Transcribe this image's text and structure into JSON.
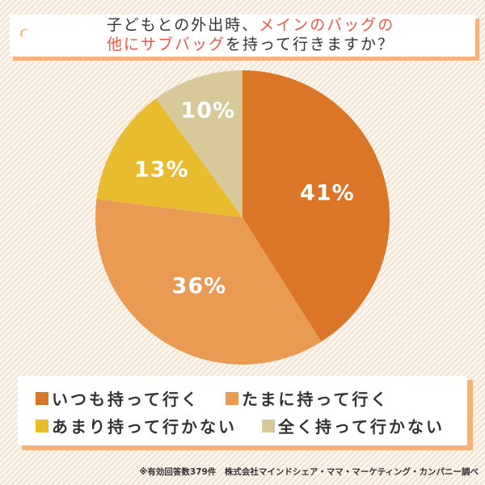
{
  "title": {
    "line1_plain": "子どもとの外出時、",
    "line1_highlight": "メインのバッグの",
    "line2_highlight": "他にサブバッグ",
    "line2_plain": "を持って行きますか？",
    "highlight_color": "#E8594A",
    "icon": "orange-crescent-icon"
  },
  "chart_data": {
    "type": "pie",
    "title": "子どもとの外出時、メインのバッグの他にサブバッグを持って行きますか？",
    "categories": [
      "いつも持って行く",
      "たまに持って行く",
      "あまり持って行かない",
      "全く持って行かない"
    ],
    "values": [
      41,
      36,
      13,
      10
    ],
    "labels": [
      "41%",
      "36%",
      "13%",
      "10%"
    ],
    "colors": [
      "#DB7528",
      "#E99A53",
      "#E8BC2E",
      "#D8C99A"
    ],
    "start_angle": "12 o'clock, clockwise",
    "legend_position": "bottom"
  },
  "legend": {
    "items": [
      {
        "label": "いつも持って行く",
        "color": "#DB7528"
      },
      {
        "label": "たまに持って行く",
        "color": "#E99A53"
      },
      {
        "label": "あまり持って行かない",
        "color": "#E8BC2E"
      },
      {
        "label": "全く持って行かない",
        "color": "#D8C99A"
      }
    ]
  },
  "footer": {
    "note": "※有効回答数379件　株式会社マインドシェア・ママ・マーケティング・カンパニー調べ"
  }
}
